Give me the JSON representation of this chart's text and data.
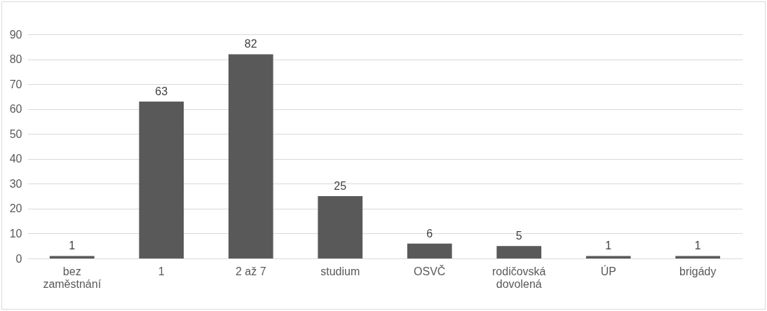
{
  "chart_data": {
    "type": "bar",
    "categories": [
      "bez zaměstnání",
      "1",
      "2 až 7",
      "studium",
      "OSVČ",
      "rodičovská dovolená",
      "ÚP",
      "brigády"
    ],
    "values": [
      1,
      63,
      82,
      25,
      6,
      5,
      1,
      1
    ],
    "color": "#595959",
    "ylim": [
      0,
      90
    ],
    "yticks": [
      0,
      10,
      20,
      30,
      40,
      50,
      60,
      70,
      80,
      90
    ],
    "grid": "y",
    "data_labels": true
  }
}
